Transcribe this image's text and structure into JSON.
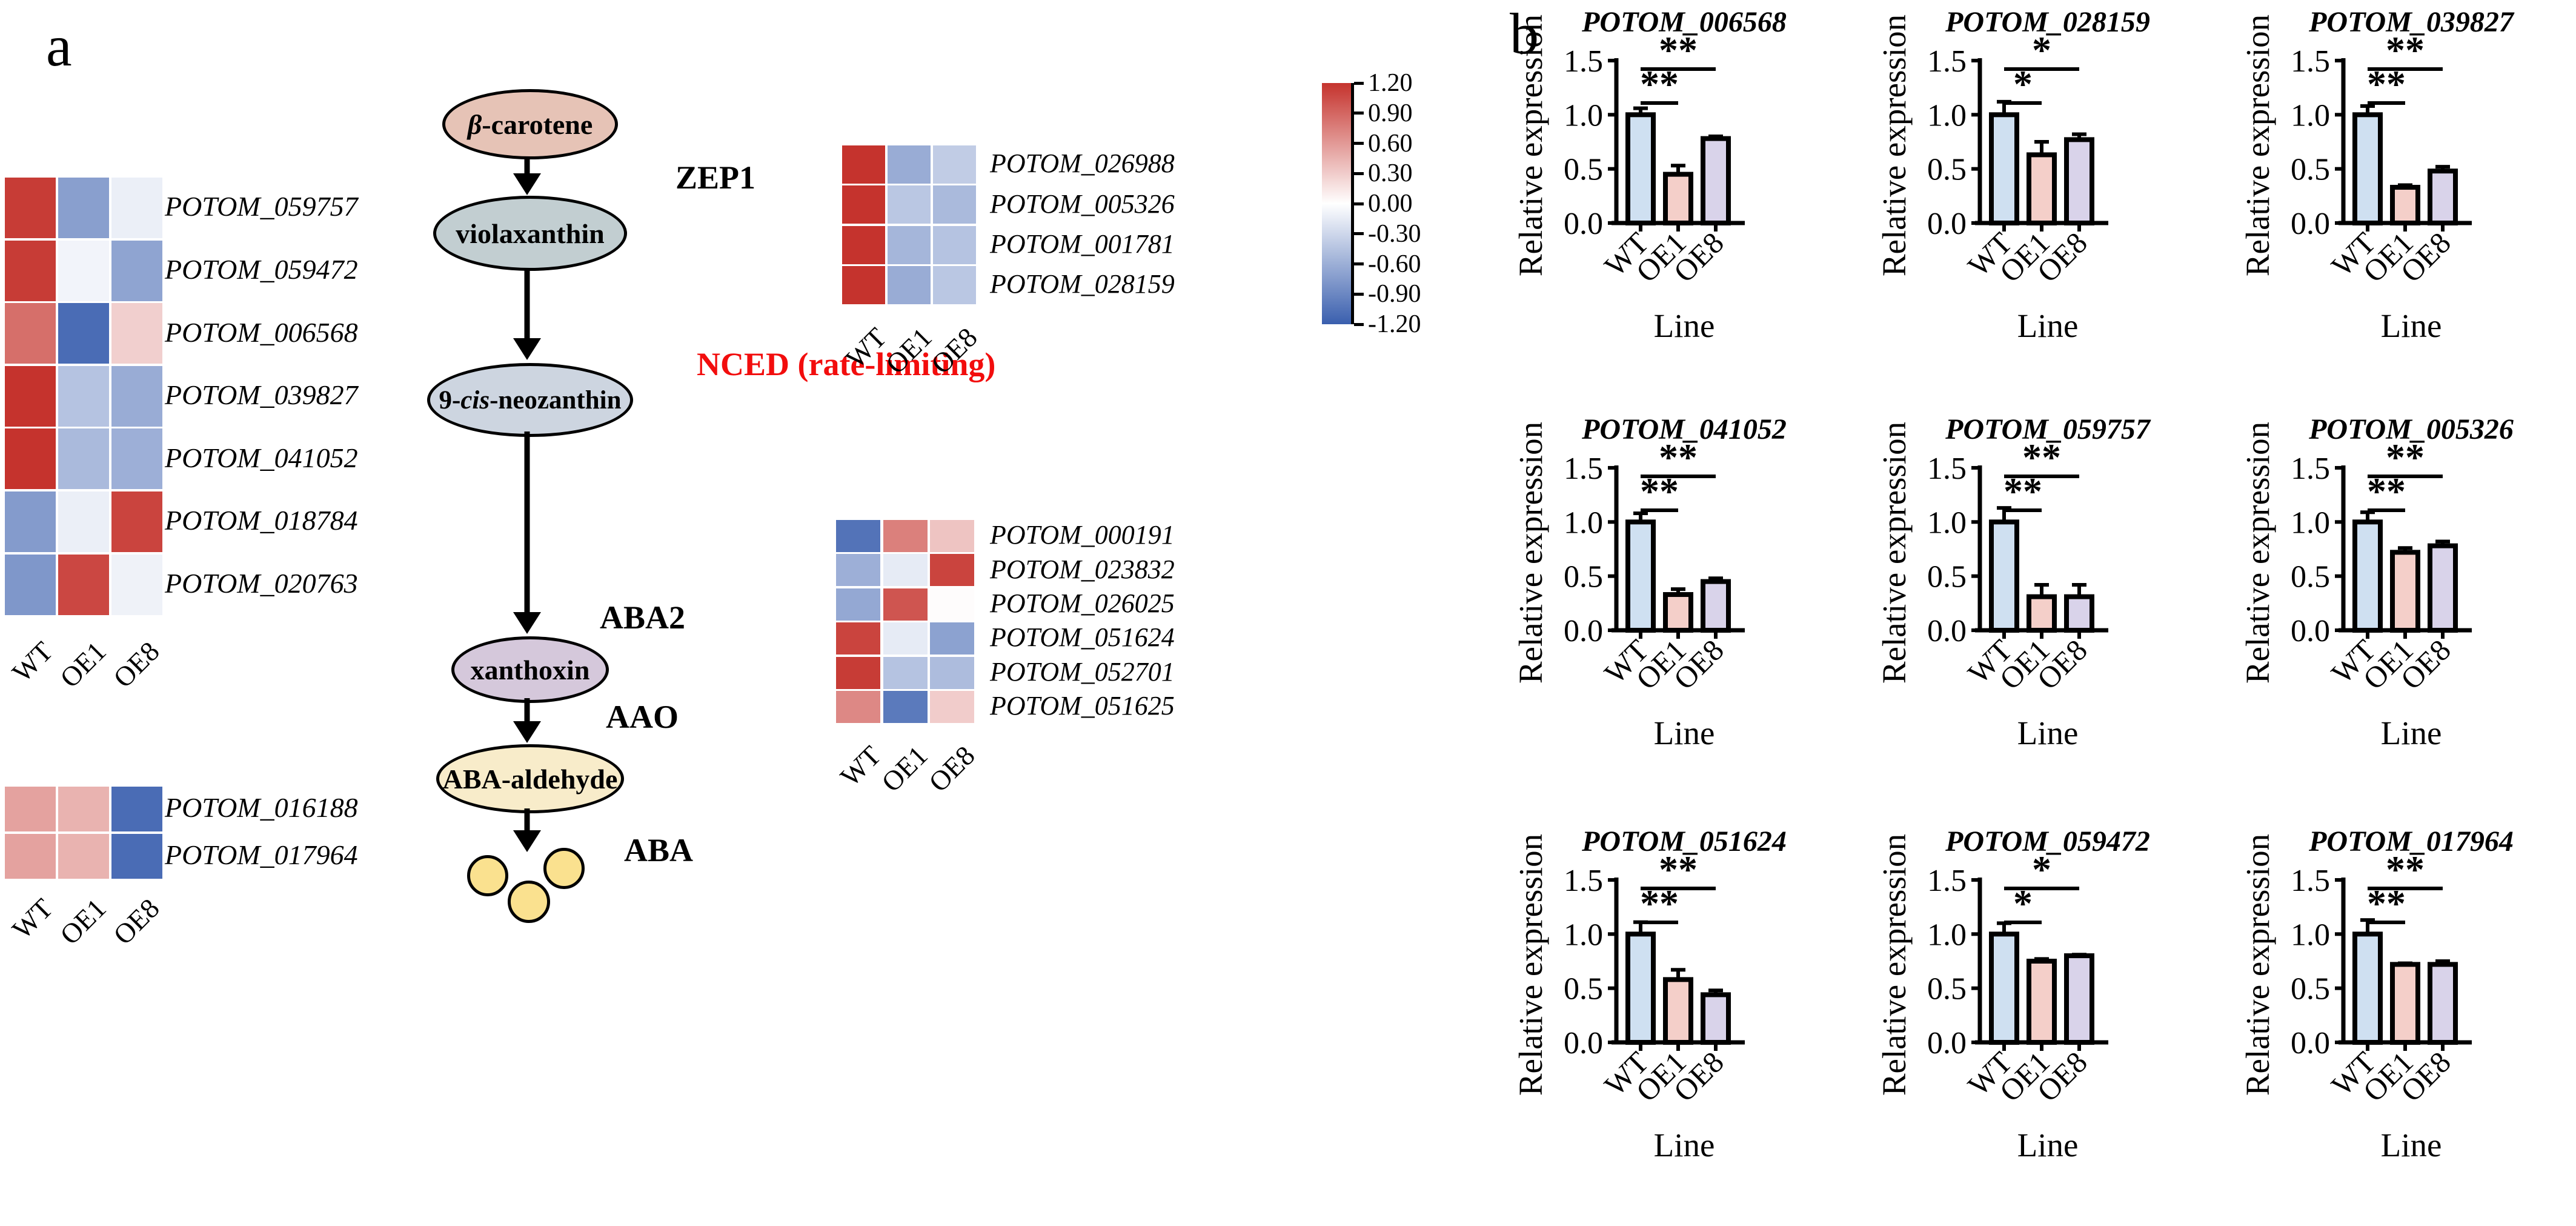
{
  "panels": {
    "a_label": "a",
    "b_label": "b"
  },
  "colors": {
    "heat_max_red": "#c5332d",
    "heat_min_blue": "#3a5fae",
    "heat_mid_white": "#ffffff",
    "nced_red": "#f20d0d",
    "bar_fills": {
      "WT": "#cfe0f1",
      "OE1": "#f4cfc9",
      "OE8": "#d9d3ea"
    },
    "node_beta_carotene": "#e6c3b6",
    "node_violaxanthin": "#c2ced1",
    "node_neozanthin": "#cdd5e0",
    "node_xanthoxin": "#d5c8db",
    "node_aba_aldehyde": "#f8ecca",
    "aba_circle_yellow": "#fae18f"
  },
  "pathway": {
    "nodes": [
      {
        "id": "beta-carotene",
        "label": "*β*-carotene"
      },
      {
        "id": "violaxanthin",
        "label": "violaxanthin"
      },
      {
        "id": "cis-neozanthin",
        "label": "9-*cis*-neozanthin"
      },
      {
        "id": "xanthoxin",
        "label": "xanthoxin"
      },
      {
        "id": "aba-aldehyde",
        "label": "ABA-aldehyde"
      }
    ],
    "enzymes": [
      {
        "id": "zep1",
        "label": "ZEP1",
        "red": false
      },
      {
        "id": "nced",
        "label": "NCED (rate-limiting)",
        "red": true
      },
      {
        "id": "aba2",
        "label": "ABA2",
        "red": false
      },
      {
        "id": "aao",
        "label": "AAO",
        "red": false
      },
      {
        "id": "aba",
        "label": "ABA",
        "red": false
      }
    ]
  },
  "colorbar": {
    "ticks": [
      "1.20",
      "0.90",
      "0.60",
      "0.30",
      "0.00",
      "-0.30",
      "-0.60",
      "-0.90",
      "-1.20"
    ],
    "max": 1.2,
    "min": -1.2
  },
  "common": {
    "ylabel": "Relative expression",
    "xlabel": "Line",
    "yticks": [
      "0.0",
      "0.5",
      "1.0",
      "1.5"
    ],
    "ymax": 1.5,
    "categories": [
      "WT",
      "OE1",
      "OE8"
    ]
  },
  "chart_data": [
    {
      "type": "bar",
      "title": "POTOM_006568",
      "categories": [
        "WT",
        "OE1",
        "OE8"
      ],
      "values": [
        1.0,
        0.45,
        0.78
      ],
      "errors": [
        0.06,
        0.08,
        0.02
      ],
      "significance": [
        {
          "compare": [
            "WT",
            "OE1"
          ],
          "label": "**"
        },
        {
          "compare": [
            "WT",
            "OE8"
          ],
          "label": "**"
        }
      ],
      "ylabel": "Relative expression",
      "xlabel": "Line",
      "ylim": [
        0,
        1.5
      ]
    },
    {
      "type": "bar",
      "title": "POTOM_028159",
      "categories": [
        "WT",
        "OE1",
        "OE8"
      ],
      "values": [
        1.0,
        0.63,
        0.77
      ],
      "errors": [
        0.12,
        0.12,
        0.05
      ],
      "significance": [
        {
          "compare": [
            "WT",
            "OE1"
          ],
          "label": "*"
        },
        {
          "compare": [
            "WT",
            "OE8"
          ],
          "label": "*"
        }
      ],
      "ylabel": "Relative expression",
      "xlabel": "Line",
      "ylim": [
        0,
        1.5
      ]
    },
    {
      "type": "bar",
      "title": "POTOM_039827",
      "categories": [
        "WT",
        "OE1",
        "OE8"
      ],
      "values": [
        1.0,
        0.33,
        0.48
      ],
      "errors": [
        0.08,
        0.02,
        0.04
      ],
      "significance": [
        {
          "compare": [
            "WT",
            "OE1"
          ],
          "label": "**"
        },
        {
          "compare": [
            "WT",
            "OE8"
          ],
          "label": "**"
        }
      ],
      "ylabel": "Relative expression",
      "xlabel": "Line",
      "ylim": [
        0,
        1.5
      ]
    },
    {
      "type": "bar",
      "title": "POTOM_041052",
      "categories": [
        "WT",
        "OE1",
        "OE8"
      ],
      "values": [
        1.0,
        0.33,
        0.45
      ],
      "errors": [
        0.08,
        0.05,
        0.03
      ],
      "significance": [
        {
          "compare": [
            "WT",
            "OE1"
          ],
          "label": "**"
        },
        {
          "compare": [
            "WT",
            "OE8"
          ],
          "label": "**"
        }
      ],
      "ylabel": "Relative expression",
      "xlabel": "Line",
      "ylim": [
        0,
        1.5
      ]
    },
    {
      "type": "bar",
      "title": "POTOM_059757",
      "categories": [
        "WT",
        "OE1",
        "OE8"
      ],
      "values": [
        1.0,
        0.31,
        0.31
      ],
      "errors": [
        0.13,
        0.11,
        0.11
      ],
      "significance": [
        {
          "compare": [
            "WT",
            "OE1"
          ],
          "label": "**"
        },
        {
          "compare": [
            "WT",
            "OE8"
          ],
          "label": "**"
        }
      ],
      "ylabel": "Relative expression",
      "xlabel": "Line",
      "ylim": [
        0,
        1.5
      ]
    },
    {
      "type": "bar",
      "title": "POTOM_005326",
      "categories": [
        "WT",
        "OE1",
        "OE8"
      ],
      "values": [
        1.0,
        0.72,
        0.78
      ],
      "errors": [
        0.09,
        0.04,
        0.04
      ],
      "significance": [
        {
          "compare": [
            "WT",
            "OE1"
          ],
          "label": "**"
        },
        {
          "compare": [
            "WT",
            "OE8"
          ],
          "label": "**"
        }
      ],
      "ylabel": "Relative expression",
      "xlabel": "Line",
      "ylim": [
        0,
        1.5
      ]
    },
    {
      "type": "bar",
      "title": "POTOM_051624",
      "categories": [
        "WT",
        "OE1",
        "OE8"
      ],
      "values": [
        1.0,
        0.58,
        0.44
      ],
      "errors": [
        0.11,
        0.09,
        0.04
      ],
      "significance": [
        {
          "compare": [
            "WT",
            "OE1"
          ],
          "label": "**"
        },
        {
          "compare": [
            "WT",
            "OE8"
          ],
          "label": "**"
        }
      ],
      "ylabel": "Relative expression",
      "xlabel": "Line",
      "ylim": [
        0,
        1.5
      ]
    },
    {
      "type": "bar",
      "title": "POTOM_059472",
      "categories": [
        "WT",
        "OE1",
        "OE8"
      ],
      "values": [
        1.0,
        0.75,
        0.8
      ],
      "errors": [
        0.1,
        0.02,
        0.01
      ],
      "significance": [
        {
          "compare": [
            "WT",
            "OE1"
          ],
          "label": "*"
        },
        {
          "compare": [
            "WT",
            "OE8"
          ],
          "label": "*"
        }
      ],
      "ylabel": "Relative expression",
      "xlabel": "Line",
      "ylim": [
        0,
        1.5
      ]
    },
    {
      "type": "bar",
      "title": "POTOM_017964",
      "categories": [
        "WT",
        "OE1",
        "OE8"
      ],
      "values": [
        1.0,
        0.72,
        0.72
      ],
      "errors": [
        0.13,
        0.01,
        0.03
      ],
      "significance": [
        {
          "compare": [
            "WT",
            "OE1"
          ],
          "label": "**"
        },
        {
          "compare": [
            "WT",
            "OE8"
          ],
          "label": "**"
        }
      ],
      "ylabel": "Relative expression",
      "xlabel": "Line",
      "ylim": [
        0,
        1.5
      ]
    },
    {
      "type": "heatmap",
      "id": "hm_left",
      "columns": [
        "WT",
        "OE1",
        "OE8"
      ],
      "scale": {
        "min": -1.2,
        "max": 1.2
      },
      "rows": [
        {
          "gene": "POTOM_059757",
          "values": [
            1.15,
            -0.72,
            -0.12
          ]
        },
        {
          "gene": "POTOM_059472",
          "values": [
            1.15,
            -0.08,
            -0.68
          ]
        },
        {
          "gene": "POTOM_006568",
          "values": [
            0.85,
            -1.1,
            0.28
          ]
        },
        {
          "gene": "POTOM_039827",
          "values": [
            1.2,
            -0.45,
            -0.62
          ]
        },
        {
          "gene": "POTOM_041052",
          "values": [
            1.2,
            -0.52,
            -0.6
          ]
        },
        {
          "gene": "POTOM_018784",
          "values": [
            -0.75,
            -0.12,
            1.1
          ]
        },
        {
          "gene": "POTOM_020763",
          "values": [
            -0.78,
            1.08,
            -0.1
          ]
        }
      ]
    },
    {
      "type": "heatmap",
      "id": "hm_top_right",
      "columns": [
        "WT",
        "OE1",
        "OE8"
      ],
      "scale": {
        "min": -1.2,
        "max": 1.2
      },
      "rows": [
        {
          "gene": "POTOM_026988",
          "values": [
            1.2,
            -0.62,
            -0.38
          ]
        },
        {
          "gene": "POTOM_005326",
          "values": [
            1.2,
            -0.42,
            -0.52
          ]
        },
        {
          "gene": "POTOM_001781",
          "values": [
            1.2,
            -0.55,
            -0.45
          ]
        },
        {
          "gene": "POTOM_028159",
          "values": [
            1.2,
            -0.62,
            -0.42
          ]
        }
      ]
    },
    {
      "type": "heatmap",
      "id": "hm_mid_right",
      "columns": [
        "WT",
        "OE1",
        "OE8"
      ],
      "scale": {
        "min": -1.2,
        "max": 1.2
      },
      "rows": [
        {
          "gene": "POTOM_000191",
          "values": [
            -1.05,
            0.75,
            0.35
          ]
        },
        {
          "gene": "POTOM_023832",
          "values": [
            -0.6,
            -0.15,
            1.1
          ]
        },
        {
          "gene": "POTOM_026025",
          "values": [
            -0.65,
            1.0,
            0.02
          ]
        },
        {
          "gene": "POTOM_051624",
          "values": [
            1.1,
            -0.15,
            -0.7
          ]
        },
        {
          "gene": "POTOM_052701",
          "values": [
            1.15,
            -0.45,
            -0.5
          ]
        },
        {
          "gene": "POTOM_051625",
          "values": [
            0.7,
            -1.0,
            0.3
          ]
        }
      ]
    },
    {
      "type": "heatmap",
      "id": "hm_bottom_left",
      "columns": [
        "WT",
        "OE1",
        "OE8"
      ],
      "scale": {
        "min": -1.2,
        "max": 1.2
      },
      "rows": [
        {
          "gene": "POTOM_016188",
          "values": [
            0.55,
            0.45,
            -1.1
          ]
        },
        {
          "gene": "POTOM_017964",
          "values": [
            0.55,
            0.45,
            -1.1
          ]
        }
      ]
    }
  ]
}
